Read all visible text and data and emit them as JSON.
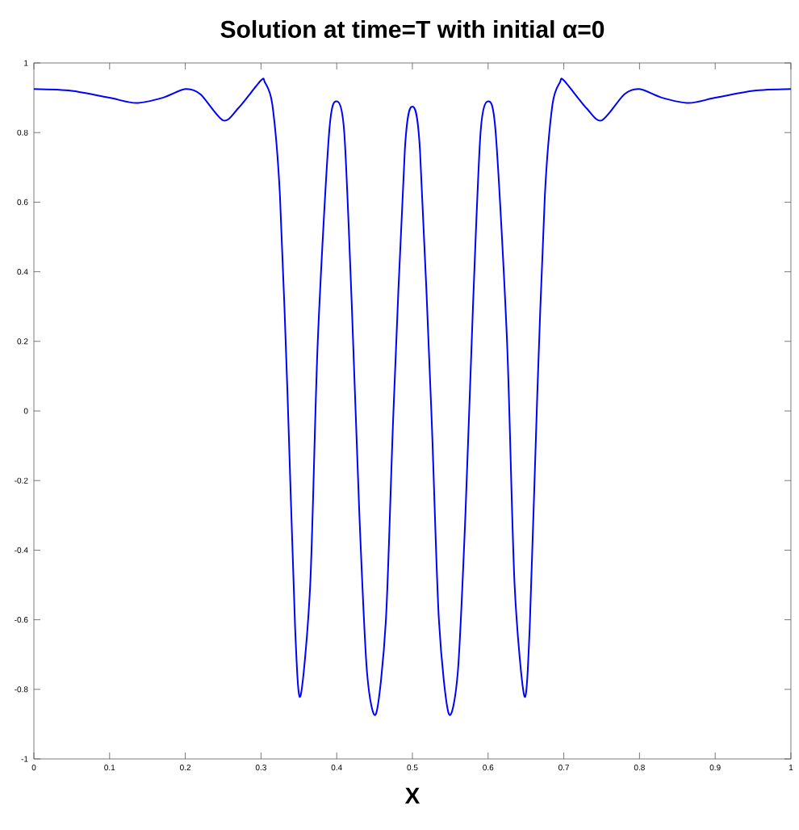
{
  "chart_data": {
    "type": "line",
    "title": "Solution at time=T with initial  α=0",
    "xlabel": "X",
    "xlim": [
      0,
      1
    ],
    "ylim": [
      -1,
      1
    ],
    "xticks": [
      0,
      0.1,
      0.2,
      0.3,
      0.4,
      0.5,
      0.6,
      0.7,
      0.8,
      0.9,
      1
    ],
    "yticks": [
      -1,
      -0.8,
      -0.6,
      -0.4,
      -0.2,
      0,
      0.2,
      0.4,
      0.6,
      0.8,
      1
    ],
    "grid": false,
    "marker": "none",
    "line_style": "solid",
    "series": [
      {
        "color": "#0000ff",
        "x": [
          0,
          0.05,
          0.1,
          0.135,
          0.17,
          0.2,
          0.22,
          0.25,
          0.27,
          0.3,
          0.305,
          0.315,
          0.325,
          0.335,
          0.345,
          0.352,
          0.365,
          0.375,
          0.39,
          0.4,
          0.41,
          0.42,
          0.43,
          0.44,
          0.452,
          0.465,
          0.475,
          0.49,
          0.5,
          0.51,
          0.525,
          0.535,
          0.548,
          0.56,
          0.57,
          0.58,
          0.59,
          0.6,
          0.61,
          0.625,
          0.635,
          0.648,
          0.655,
          0.665,
          0.675,
          0.685,
          0.695,
          0.7,
          0.73,
          0.75,
          0.78,
          0.8,
          0.83,
          0.865,
          0.9,
          0.95,
          1
        ],
        "values": [
          0.925,
          0.92,
          0.9,
          0.885,
          0.9,
          0.925,
          0.91,
          0.835,
          0.87,
          0.95,
          0.945,
          0.88,
          0.62,
          0.05,
          -0.62,
          -0.82,
          -0.5,
          0.2,
          0.8,
          0.89,
          0.8,
          0.3,
          -0.3,
          -0.75,
          -0.87,
          -0.6,
          0,
          0.75,
          0.875,
          0.75,
          0,
          -0.6,
          -0.87,
          -0.75,
          -0.3,
          0.3,
          0.8,
          0.89,
          0.8,
          0.2,
          -0.5,
          -0.82,
          -0.62,
          0.05,
          0.62,
          0.88,
          0.945,
          0.95,
          0.87,
          0.835,
          0.91,
          0.925,
          0.9,
          0.885,
          0.9,
          0.92,
          0.925
        ]
      }
    ]
  }
}
